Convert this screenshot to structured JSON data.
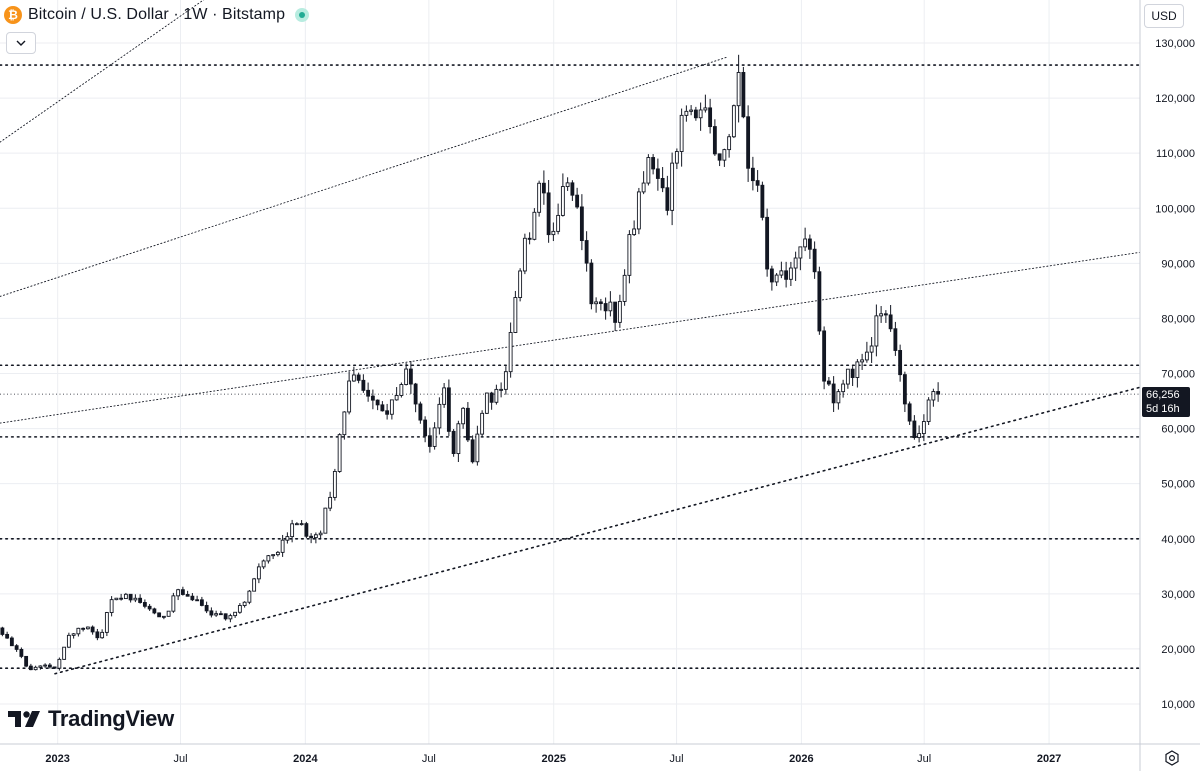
{
  "header": {
    "symbol_title": "Bitcoin / U.S. Dollar · 1W · Bitstamp",
    "logo_glyph": "₿",
    "currency": "USD"
  },
  "price_label": {
    "price": "66,256",
    "countdown": "5d 16h"
  },
  "branding": {
    "text": "TradingView"
  },
  "icons": {
    "logo": "bitcoin-icon",
    "collapse": "chevron-down-icon",
    "settings": "settings-icon",
    "status": "market-status-dot"
  },
  "colors": {
    "candle_up": "#ffffff",
    "candle_down": "#131722",
    "grid": "#eceef2",
    "line": "#131722",
    "label_bg": "#131722"
  },
  "chart_data": {
    "type": "candlestick",
    "title": "Bitcoin / U.S. Dollar · 1W · Bitstamp",
    "ylim": [
      0,
      135000
    ],
    "y_ticks": [
      10000,
      20000,
      30000,
      40000,
      50000,
      60000,
      70000,
      80000,
      90000,
      100000,
      110000,
      120000,
      130000
    ],
    "y_tick_labels": [
      "10,000",
      "20,000",
      "30,000",
      "40,000",
      "50,000",
      "60,000",
      "70,000",
      "80,000",
      "90,000",
      "100,000",
      "110,000",
      "120,000",
      "130,000"
    ],
    "x_tick_labels": [
      "2023",
      "Jul",
      "2024",
      "Jul",
      "2025",
      "Jul",
      "2026",
      "Jul",
      "2027"
    ],
    "x_tick_dates": [
      "2023-01-01",
      "2023-07-01",
      "2024-01-01",
      "2024-07-01",
      "2025-01-01",
      "2025-07-01",
      "2026-01-01",
      "2026-07-01",
      "2027-01-01"
    ],
    "x_range": [
      "2022-10-08",
      "2027-05-15"
    ],
    "grid": true,
    "current_price": 66256,
    "horizontal_levels": [
      126000,
      71500,
      58500,
      40000,
      16500
    ],
    "trendlines": [
      {
        "style": "dense",
        "from": [
          "2022-12-28",
          15500
        ],
        "to": [
          "2027-05-15",
          67500
        ]
      },
      {
        "style": "sparse",
        "from": [
          "2022-10-08",
          61000
        ],
        "to": [
          "2027-05-15",
          92000
        ]
      },
      {
        "style": "sparse",
        "from": [
          "2022-10-08",
          84000
        ],
        "to": [
          "2025-09-15",
          127500
        ]
      },
      {
        "style": "sparse",
        "from": [
          "2022-10-08",
          112000
        ],
        "to": [
          "2024-11-01",
          177000
        ]
      }
    ],
    "anchors": [
      [
        "2022-10-08",
        23800
      ],
      [
        "2022-11-05",
        20000
      ],
      [
        "2022-11-20",
        16300
      ],
      [
        "2022-12-15",
        17100
      ],
      [
        "2023-01-01",
        16600
      ],
      [
        "2023-01-23",
        22800
      ],
      [
        "2023-02-20",
        24000
      ],
      [
        "2023-03-09",
        21500
      ],
      [
        "2023-03-20",
        28000
      ],
      [
        "2023-04-14",
        30300
      ],
      [
        "2023-05-20",
        26800
      ],
      [
        "2023-06-14",
        25800
      ],
      [
        "2023-06-28",
        30300
      ],
      [
        "2023-07-20",
        29800
      ],
      [
        "2023-08-16",
        26000
      ],
      [
        "2023-09-10",
        25800
      ],
      [
        "2023-10-03",
        27600
      ],
      [
        "2023-10-25",
        34500
      ],
      [
        "2023-12-01",
        38800
      ],
      [
        "2023-12-15",
        43000
      ],
      [
        "2024-01-23",
        40000
      ],
      [
        "2024-02-10",
        48000
      ],
      [
        "2024-03-01",
        62000
      ],
      [
        "2024-03-14",
        71000
      ],
      [
        "2024-04-17",
        63000
      ],
      [
        "2024-05-05",
        63500
      ],
      [
        "2024-06-05",
        70500
      ],
      [
        "2024-07-05",
        56000
      ],
      [
        "2024-07-28",
        68000
      ],
      [
        "2024-08-06",
        54000
      ],
      [
        "2024-08-24",
        64000
      ],
      [
        "2024-09-06",
        54000
      ],
      [
        "2024-09-27",
        65000
      ],
      [
        "2024-10-25",
        68000
      ],
      [
        "2024-11-12",
        88000
      ],
      [
        "2024-12-17",
        104000
      ],
      [
        "2024-12-30",
        93500
      ],
      [
        "2025-01-22",
        105000
      ],
      [
        "2025-02-14",
        96000
      ],
      [
        "2025-03-01",
        84000
      ],
      [
        "2025-03-30",
        82000
      ],
      [
        "2025-04-10",
        80000
      ],
      [
        "2025-04-25",
        94000
      ],
      [
        "2025-05-21",
        108000
      ],
      [
        "2025-06-21",
        101000
      ],
      [
        "2025-07-14",
        119000
      ],
      [
        "2025-08-14",
        118000
      ],
      [
        "2025-09-01",
        108000
      ],
      [
        "2025-09-21",
        115000
      ],
      [
        "2025-10-06",
        124000
      ],
      [
        "2025-10-17",
        107000
      ],
      [
        "2025-11-06",
        101000
      ],
      [
        "2025-11-20",
        85000
      ],
      [
        "2025-12-15",
        88000
      ],
      [
        "2026-01-13",
        95000
      ],
      [
        "2026-01-25",
        88000
      ],
      [
        "2026-02-08",
        68000
      ],
      [
        "2026-02-27",
        65000
      ],
      [
        "2026-03-16",
        70000
      ],
      [
        "2026-04-07",
        72000
      ],
      [
        "2026-04-25",
        79000
      ],
      [
        "2026-05-05",
        81500
      ],
      [
        "2026-05-24",
        75000
      ],
      [
        "2026-06-10",
        61000
      ],
      [
        "2026-06-25",
        58500
      ],
      [
        "2026-07-05",
        63000
      ],
      [
        "2026-07-19",
        66256
      ]
    ]
  }
}
